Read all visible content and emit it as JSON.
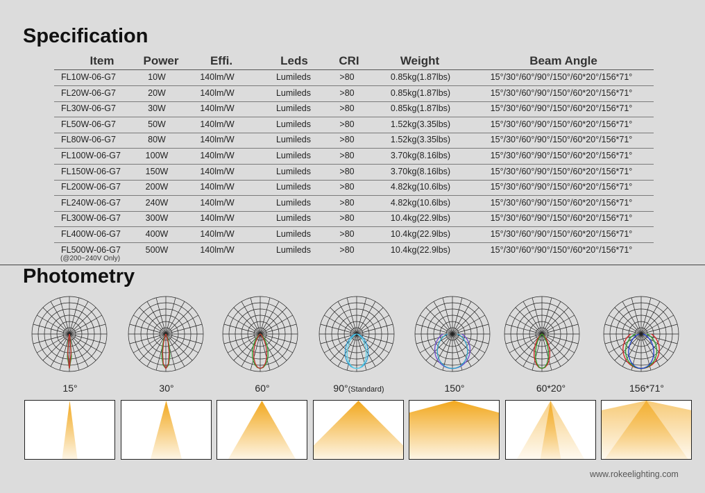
{
  "specification": {
    "title": "Specification",
    "headers": [
      "Item",
      "Power",
      "Effi.",
      "Leds",
      "CRI",
      "Weight",
      "Beam Angle"
    ],
    "rows": [
      {
        "item": "FL10W-06-G7",
        "power": "10W",
        "effi": "140lm/W",
        "leds": "Lumileds",
        "cri": ">80",
        "weight": "0.85kg(1.87lbs)",
        "beam": "15°/30°/60°/90°/150°/60*20°/156*71°"
      },
      {
        "item": "FL20W-06-G7",
        "power": "20W",
        "effi": "140lm/W",
        "leds": "Lumileds",
        "cri": ">80",
        "weight": "0.85kg(1.87lbs)",
        "beam": "15°/30°/60°/90°/150°/60*20°/156*71°"
      },
      {
        "item": "FL30W-06-G7",
        "power": "30W",
        "effi": "140lm/W",
        "leds": "Lumileds",
        "cri": ">80",
        "weight": "0.85kg(1.87lbs)",
        "beam": "15°/30°/60°/90°/150°/60*20°/156*71°"
      },
      {
        "item": "FL50W-06-G7",
        "power": "50W",
        "effi": "140lm/W",
        "leds": "Lumileds",
        "cri": ">80",
        "weight": "1.52kg(3.35lbs)",
        "beam": "15°/30°/60°/90°/150°/60*20°/156*71°"
      },
      {
        "item": "FL80W-06-G7",
        "power": "80W",
        "effi": "140lm/W",
        "leds": "Lumileds",
        "cri": ">80",
        "weight": "1.52kg(3.35lbs)",
        "beam": "15°/30°/60°/90°/150°/60*20°/156*71°"
      },
      {
        "item": "FL100W-06-G7",
        "power": "100W",
        "effi": "140lm/W",
        "leds": "Lumileds",
        "cri": ">80",
        "weight": "3.70kg(8.16lbs)",
        "beam": "15°/30°/60°/90°/150°/60*20°/156*71°"
      },
      {
        "item": "FL150W-06-G7",
        "power": "150W",
        "effi": "140lm/W",
        "leds": "Lumileds",
        "cri": ">80",
        "weight": "3.70kg(8.16lbs)",
        "beam": "15°/30°/60°/90°/150°/60*20°/156*71°"
      },
      {
        "item": "FL200W-06-G7",
        "power": "200W",
        "effi": "140lm/W",
        "leds": "Lumileds",
        "cri": ">80",
        "weight": "4.82kg(10.6lbs)",
        "beam": "15°/30°/60°/90°/150°/60*20°/156*71°"
      },
      {
        "item": "FL240W-06-G7",
        "power": "240W",
        "effi": "140lm/W",
        "leds": "Lumileds",
        "cri": ">80",
        "weight": "4.82kg(10.6lbs)",
        "beam": "15°/30°/60°/90°/150°/60*20°/156*71°"
      },
      {
        "item": "FL300W-06-G7",
        "power": "300W",
        "effi": "140lm/W",
        "leds": "Lumileds",
        "cri": ">80",
        "weight": "10.4kg(22.9lbs)",
        "beam": "15°/30°/60°/90°/150°/60*20°/156*71°"
      },
      {
        "item": "FL400W-06-G7",
        "power": "400W",
        "effi": "140lm/W",
        "leds": "Lumileds",
        "cri": ">80",
        "weight": "10.4kg(22.9lbs)",
        "beam": "15°/30°/60°/90°/150°/60*20°/156*71°"
      },
      {
        "item": "FL500W-06-G7",
        "power": "500W",
        "effi": "140lm/W",
        "leds": "Lumileds",
        "cri": ">80",
        "weight": "10.4kg(22.9lbs)",
        "beam": "15°/30°/60°/90°/150°/60*20°/156*71°"
      }
    ],
    "voltage_note": "(@200~240V Only)"
  },
  "photometry": {
    "title": "Photometry",
    "diagrams": [
      {
        "label": "15°",
        "suffix": "",
        "beam_width_deg": 15,
        "curve_colors": [
          "#2e9e2e",
          "#c03030"
        ],
        "icon": "polar-candela-diagram-icon"
      },
      {
        "label": "30°",
        "suffix": "",
        "beam_width_deg": 30,
        "curve_colors": [
          "#2e9e2e",
          "#c03030"
        ],
        "icon": "polar-candela-diagram-icon"
      },
      {
        "label": "60°",
        "suffix": "",
        "beam_width_deg": 60,
        "curve_colors": [
          "#2e9e2e",
          "#c03030"
        ],
        "icon": "polar-candela-diagram-icon"
      },
      {
        "label": "90°",
        "suffix": "(Standard)",
        "beam_width_deg": 90,
        "curve_colors": [
          "#2b9fd8",
          "#5ad0e8"
        ],
        "icon": "polar-candela-diagram-icon"
      },
      {
        "label": "150°",
        "suffix": "",
        "beam_width_deg": 150,
        "curve_colors": [
          "#6a4bd0",
          "#2ea0c8"
        ],
        "icon": "polar-candela-diagram-icon"
      },
      {
        "label": "60*20°",
        "suffix": "",
        "beam_width_deg": 60,
        "curve_colors": [
          "#d02020",
          "#2e9e2e"
        ],
        "icon": "polar-candela-diagram-icon"
      },
      {
        "label": "156*71°",
        "suffix": "",
        "beam_width_deg": 156,
        "curve_colors": [
          "#d02020",
          "#2e9e2e",
          "#1e3ec8"
        ],
        "icon": "polar-candela-diagram-icon"
      }
    ],
    "beam_color": "#f2a81e"
  },
  "website": "www.rokeelighting.com"
}
